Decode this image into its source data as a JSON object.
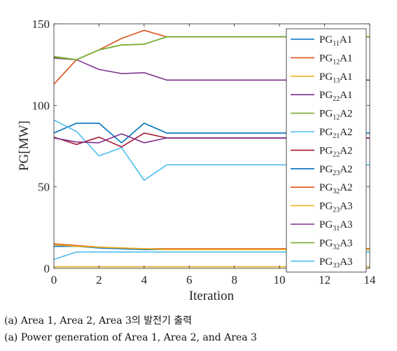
{
  "chart_data": {
    "type": "line",
    "xlabel": "Iteration",
    "ylabel": "PG[MW]",
    "xlim": [
      0,
      14
    ],
    "ylim": [
      0,
      150
    ],
    "xticks": [
      0,
      2,
      4,
      6,
      8,
      10,
      12,
      14
    ],
    "yticks": [
      0,
      50,
      100,
      150
    ],
    "grid": false,
    "legend_position": "top-right, inside",
    "x": [
      0,
      1,
      2,
      3,
      4,
      5,
      6,
      7,
      8,
      9,
      10,
      11,
      12,
      13,
      14
    ],
    "series": [
      {
        "name": "PG11A1",
        "label": {
          "base": "PG",
          "sub": "11",
          "suffix": "A1"
        },
        "color": "#0072BD",
        "values": [
          83,
          89,
          89,
          77,
          89,
          83,
          83,
          83,
          83,
          83,
          83,
          83,
          83,
          83,
          83
        ]
      },
      {
        "name": "PG12A1",
        "label": {
          "base": "PG",
          "sub": "12",
          "suffix": "A1"
        },
        "color": "#D95319",
        "values": [
          113,
          128,
          134,
          141,
          146,
          142,
          142,
          142,
          142,
          142,
          142,
          142,
          142,
          142,
          142
        ]
      },
      {
        "name": "PG13A1",
        "label": {
          "base": "PG",
          "sub": "13",
          "suffix": "A1"
        },
        "color": "#EDB120",
        "values": [
          1,
          1,
          1,
          1,
          1,
          1,
          1,
          1,
          1,
          1,
          1,
          1,
          1,
          1,
          1
        ]
      },
      {
        "name": "PG22A1",
        "label": {
          "base": "PG",
          "sub": "22",
          "suffix": "A1"
        },
        "color": "#7E2F8E",
        "values": [
          129,
          128,
          122,
          119.5,
          120,
          115.5,
          115.5,
          115.5,
          115.5,
          115.5,
          115.5,
          115.5,
          115.5,
          115.5,
          115.5
        ]
      },
      {
        "name": "PG12A2",
        "label": {
          "base": "PG",
          "sub": "12",
          "suffix": "A2"
        },
        "color": "#77AC30",
        "values": [
          130,
          128,
          134,
          137,
          137.5,
          142,
          142,
          142,
          142,
          142,
          142,
          142,
          142,
          142,
          142
        ]
      },
      {
        "name": "PG21A2",
        "label": {
          "base": "PG",
          "sub": "21",
          "suffix": "A2"
        },
        "color": "#4DBEEE",
        "values": [
          91,
          84,
          69,
          74,
          54,
          63.5,
          63.5,
          63.5,
          63.5,
          63.5,
          63.5,
          63.5,
          63.5,
          63.5,
          63.5
        ]
      },
      {
        "name": "PG22A2",
        "label": {
          "base": "PG",
          "sub": "22",
          "suffix": "A2"
        },
        "color": "#A2142F",
        "values": [
          80.5,
          76,
          80.5,
          74.5,
          83,
          80,
          80,
          80,
          80,
          80,
          80,
          80,
          80,
          80,
          80
        ]
      },
      {
        "name": "PG23A2",
        "label": {
          "base": "PG",
          "sub": "23",
          "suffix": "A2"
        },
        "color": "#0072BD",
        "values": [
          13.5,
          13.5,
          12.5,
          12,
          11.5,
          11.5,
          11.5,
          11.5,
          11.5,
          11.5,
          11.5,
          11.5,
          11.5,
          11.5,
          11.5
        ]
      },
      {
        "name": "PG32A2",
        "label": {
          "base": "PG",
          "sub": "32",
          "suffix": "A2"
        },
        "color": "#D95319",
        "values": [
          15,
          14,
          13,
          12.5,
          12,
          12,
          12,
          12,
          12,
          12,
          12,
          12,
          12,
          12,
          12
        ]
      },
      {
        "name": "PG23A3",
        "label": {
          "base": "PG",
          "sub": "23",
          "suffix": "A3"
        },
        "color": "#EDB120",
        "values": [
          14.5,
          13.5,
          13,
          12.5,
          12,
          11.5,
          11.5,
          11.5,
          11.5,
          11.5,
          11.5,
          11.5,
          11.5,
          11.5,
          11.5
        ]
      },
      {
        "name": "PG31A3",
        "label": {
          "base": "PG",
          "sub": "31",
          "suffix": "A3"
        },
        "color": "#7E2F8E",
        "values": [
          80,
          77.5,
          77,
          82.5,
          77,
          80,
          80,
          80,
          80,
          80,
          80,
          80,
          80,
          80,
          80
        ]
      },
      {
        "name": "PG32A3",
        "label": {
          "base": "PG",
          "sub": "32",
          "suffix": "A3"
        },
        "color": "#77AC30",
        "values": [
          129.5,
          128,
          134,
          137,
          137.5,
          142,
          142,
          142,
          142,
          142,
          142,
          142,
          142,
          142,
          142
        ]
      },
      {
        "name": "PG33A3",
        "label": {
          "base": "PG",
          "sub": "33",
          "suffix": "A3"
        },
        "color": "#4DBEEE",
        "values": [
          5.5,
          10,
          10,
          10,
          10,
          10,
          10,
          10,
          10,
          10,
          10,
          10,
          10,
          10,
          10
        ]
      }
    ]
  },
  "captions": {
    "korean": "(a) Area 1, Area 2, Area 3의 발전기 출력",
    "english": "(a) Power generation of Area 1, Area 2, and Area 3"
  }
}
